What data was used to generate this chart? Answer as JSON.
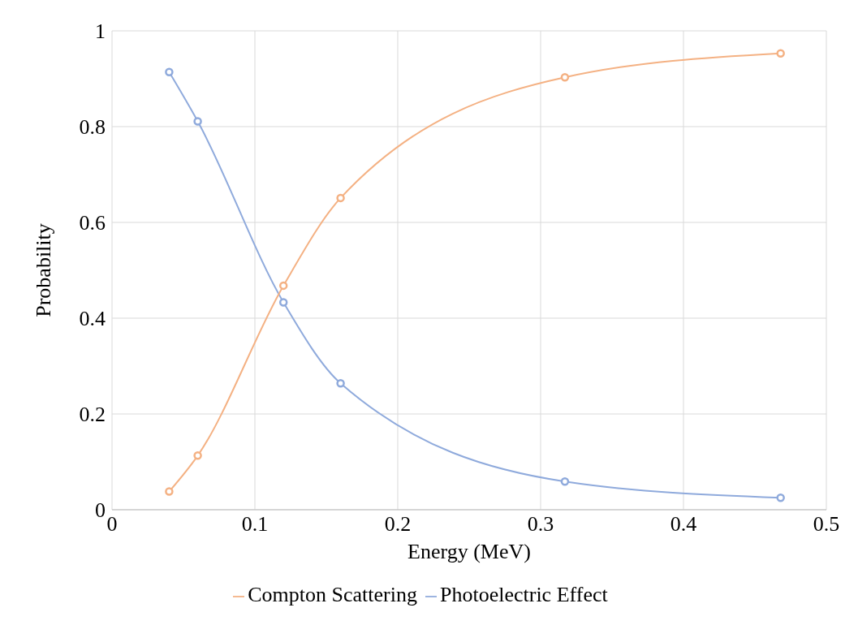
{
  "chart_data": {
    "type": "line",
    "xlabel": "Energy (MeV)",
    "ylabel": "Probability",
    "x": [
      0.04,
      0.06,
      0.12,
      0.16,
      0.317,
      0.468
    ],
    "series": [
      {
        "name": "Photoelectric Effect",
        "color": "#8faadc",
        "values": [
          0.914,
          0.811,
          0.433,
          0.264,
          0.059,
          0.025
        ]
      },
      {
        "name": "Compton Scattering",
        "color": "#f4b183",
        "values": [
          0.038,
          0.113,
          0.468,
          0.651,
          0.903,
          0.953
        ]
      }
    ],
    "xlim": [
      0,
      0.5
    ],
    "xticks": [
      0,
      0.1,
      0.2,
      0.3,
      0.4,
      0.5
    ],
    "ylim": [
      0,
      1
    ],
    "yticks": [
      0,
      0.2,
      0.4,
      0.6,
      0.8,
      1
    ],
    "grid": true,
    "legend": "bottom",
    "marker": "circle",
    "line_style": "solid"
  }
}
